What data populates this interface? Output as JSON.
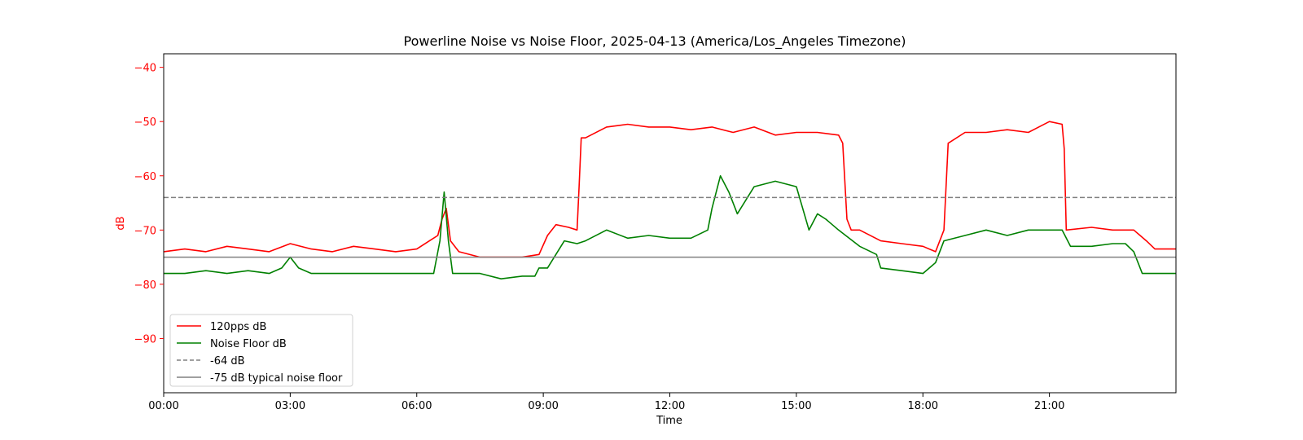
{
  "chart_data": {
    "type": "line",
    "title": "Powerline Noise vs Noise Floor, 2025-04-13 (America/Los_Angeles Timezone)",
    "xlabel": "Time",
    "ylabel": "dB",
    "x_unit": "hours",
    "xlim": [
      0,
      24
    ],
    "ylim": [
      -100,
      -37.5
    ],
    "x_ticks": [
      {
        "value": 0,
        "label": "00:00"
      },
      {
        "value": 3,
        "label": "03:00"
      },
      {
        "value": 6,
        "label": "06:00"
      },
      {
        "value": 9,
        "label": "09:00"
      },
      {
        "value": 12,
        "label": "12:00"
      },
      {
        "value": 15,
        "label": "15:00"
      },
      {
        "value": 18,
        "label": "18:00"
      },
      {
        "value": 21,
        "label": "21:00"
      }
    ],
    "y_ticks": [
      {
        "value": -40,
        "label": "−40"
      },
      {
        "value": -50,
        "label": "−50"
      },
      {
        "value": -60,
        "label": "−60"
      },
      {
        "value": -70,
        "label": "−70"
      },
      {
        "value": -80,
        "label": "−80"
      },
      {
        "value": -90,
        "label": "−90"
      }
    ],
    "ylabel_color": "#ff0000",
    "grid": false,
    "legend_position": "lower-left",
    "series": [
      {
        "name": "120pps dB",
        "color": "#ff0000",
        "style": "solid",
        "x": [
          0,
          0.5,
          1,
          1.5,
          2,
          2.5,
          3,
          3.5,
          4,
          4.5,
          5,
          5.5,
          6,
          6.3,
          6.5,
          6.6,
          6.7,
          6.8,
          7,
          7.5,
          8,
          8.5,
          8.9,
          9.1,
          9.3,
          9.6,
          9.8,
          9.85,
          9.9,
          10,
          10.5,
          11,
          11.5,
          12,
          12.5,
          13,
          13.5,
          14,
          14.5,
          15,
          15.5,
          16,
          16.1,
          16.2,
          16.3,
          16.5,
          17,
          17.5,
          18,
          18.3,
          18.5,
          18.55,
          18.6,
          19,
          19.5,
          20,
          20.5,
          21,
          21.3,
          21.35,
          21.4,
          22,
          22.5,
          22.8,
          23,
          23.3,
          23.5,
          24
        ],
        "y": [
          -74,
          -73.5,
          -74,
          -73,
          -73.5,
          -74,
          -72.5,
          -73.5,
          -74,
          -73,
          -73.5,
          -74,
          -73.5,
          -72,
          -71,
          -68,
          -66,
          -72,
          -74,
          -75,
          -75,
          -75,
          -74.5,
          -71,
          -69,
          -69.5,
          -70,
          -62,
          -53,
          -53,
          -51,
          -50.5,
          -51,
          -51,
          -51.5,
          -51,
          -52,
          -51,
          -52.5,
          -52,
          -52,
          -52.5,
          -54,
          -68,
          -70,
          -70,
          -72,
          -72.5,
          -73,
          -74,
          -70,
          -62,
          -54,
          -52,
          -52,
          -51.5,
          -52,
          -50,
          -50.5,
          -55,
          -70,
          -69.5,
          -70,
          -70,
          -70,
          -72,
          -73.5,
          -73.5
        ]
      },
      {
        "name": "Noise Floor dB",
        "color": "#008000",
        "style": "solid",
        "x": [
          0,
          0.5,
          1,
          1.5,
          2,
          2.5,
          2.8,
          3,
          3.2,
          3.5,
          4,
          4.5,
          5,
          5.5,
          6,
          6.4,
          6.55,
          6.65,
          6.75,
          6.85,
          7,
          7.5,
          8,
          8.5,
          8.8,
          8.9,
          9.1,
          9.5,
          9.8,
          10,
          10.5,
          11,
          11.5,
          12,
          12.5,
          12.9,
          13,
          13.2,
          13.4,
          13.6,
          14,
          14.5,
          15,
          15.3,
          15.5,
          15.7,
          16,
          16.5,
          16.9,
          17,
          17.5,
          18,
          18.3,
          18.5,
          19,
          19.5,
          20,
          20.5,
          21,
          21.3,
          21.5,
          22,
          22.5,
          22.8,
          23,
          23.2,
          23.5,
          24
        ],
        "y": [
          -78,
          -78,
          -77.5,
          -78,
          -77.5,
          -78,
          -77,
          -75,
          -77,
          -78,
          -78,
          -78,
          -78,
          -78,
          -78,
          -78,
          -72,
          -63,
          -72,
          -78,
          -78,
          -78,
          -79,
          -78.5,
          -78.5,
          -77,
          -77,
          -72,
          -72.5,
          -72,
          -70,
          -71.5,
          -71,
          -71.5,
          -71.5,
          -70,
          -66,
          -60,
          -63,
          -67,
          -62,
          -61,
          -62,
          -70,
          -67,
          -68,
          -70,
          -73,
          -74.5,
          -77,
          -77.5,
          -78,
          -76,
          -72,
          -71,
          -70,
          -71,
          -70,
          -70,
          -70,
          -73,
          -73,
          -72.5,
          -72.5,
          -74,
          -78,
          -78,
          -78
        ]
      },
      {
        "name": "-64 dB",
        "color": "#808080",
        "style": "dashed",
        "x": [
          0,
          24
        ],
        "y": [
          -64,
          -64
        ]
      },
      {
        "name": "-75 dB typical noise floor",
        "color": "#808080",
        "style": "solid",
        "x": [
          0,
          24
        ],
        "y": [
          -75,
          -75
        ]
      }
    ]
  }
}
